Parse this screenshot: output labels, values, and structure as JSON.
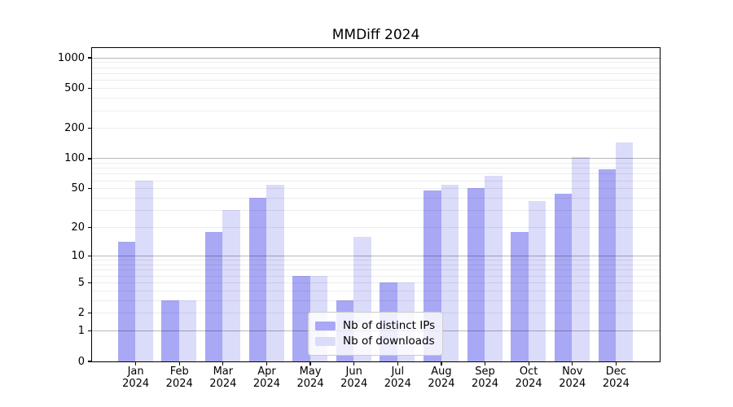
{
  "figure": {
    "title": "MMDiff 2024"
  },
  "chart_data": {
    "type": "bar",
    "title": "MMDiff 2024",
    "categories": [
      "Jan",
      "Feb",
      "Mar",
      "Apr",
      "May",
      "Jun",
      "Jul",
      "Aug",
      "Sep",
      "Oct",
      "Nov",
      "Dec"
    ],
    "x_year": "2024",
    "series": [
      {
        "name": "Nb of distinct IPs",
        "color": "#a8a8f5",
        "values": [
          14,
          3,
          18,
          40,
          6,
          3,
          5,
          48,
          50,
          18,
          44,
          78
        ]
      },
      {
        "name": "Nb of downloads",
        "color": "#dbdbfa",
        "values": [
          60,
          3,
          30,
          54,
          6,
          16,
          5,
          54,
          67,
          37,
          102,
          145
        ]
      }
    ],
    "y_ticks": [
      0,
      1,
      2,
      5,
      10,
      20,
      50,
      100,
      200,
      500,
      1000
    ],
    "y_scale": "symlog (log1p)",
    "ylim": [
      0,
      1250
    ],
    "xlabel": "",
    "ylabel": "",
    "grid": {
      "on": true,
      "major_ticks": [
        1,
        10,
        100,
        1000
      ],
      "major_color": "rgba(0,0,0,0.28)",
      "minor_color": "rgba(0,0,0,0.07)"
    },
    "legend": {
      "position": "lower center",
      "entries": [
        "Nb of distinct IPs",
        "Nb of downloads"
      ]
    }
  }
}
